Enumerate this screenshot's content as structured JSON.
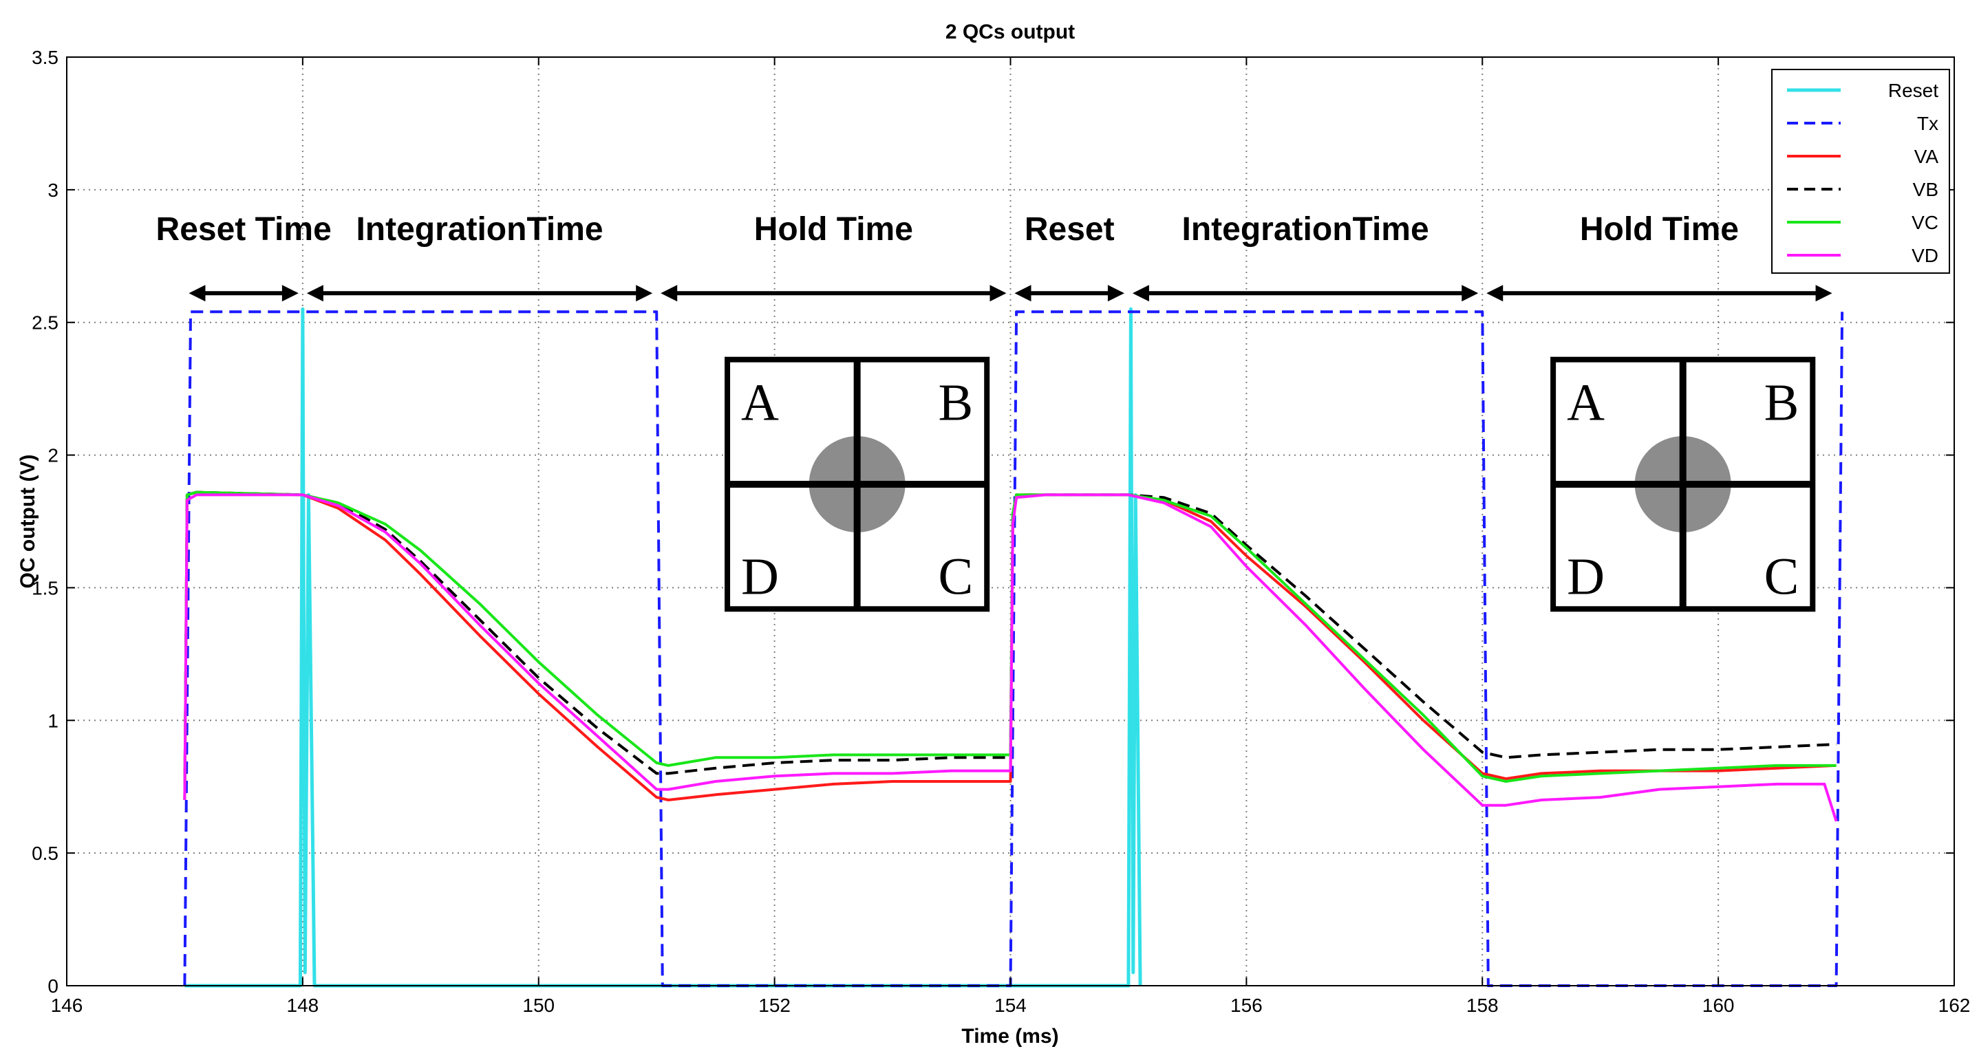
{
  "chart_data": {
    "type": "line",
    "title": "2 QCs output",
    "xlabel": "Time (ms)",
    "ylabel": "QC output (V)",
    "xlim": [
      146,
      162
    ],
    "ylim": [
      0,
      3.5
    ],
    "grid": true,
    "legend_position": "top-right",
    "xticks": [
      "146",
      "148",
      "150",
      "152",
      "154",
      "156",
      "158",
      "160",
      "162"
    ],
    "yticks": [
      "0",
      "0.5",
      "1",
      "1.5",
      "2",
      "2.5",
      "3",
      "3.5"
    ],
    "series": [
      {
        "name": "Reset",
        "color": "#33e0e8",
        "style": "solid",
        "x": [
          147.0,
          147.98,
          148.0,
          148.02,
          148.05,
          148.1,
          155.0,
          155.02,
          155.04,
          155.06,
          155.1
        ],
        "y": [
          0,
          0,
          2.55,
          0.05,
          1.85,
          0,
          0,
          2.55,
          0.05,
          1.85,
          0
        ]
      },
      {
        "name": "Tx",
        "color": "#1a1aff",
        "style": "dashed",
        "x": [
          147.0,
          147.05,
          151.0,
          151.05,
          154.0,
          154.05,
          158.0,
          158.05,
          161.0,
          161.05
        ],
        "y": [
          0,
          2.54,
          2.54,
          0,
          0,
          2.54,
          2.54,
          0,
          0,
          2.54
        ]
      },
      {
        "name": "VA",
        "color": "#ff1a1a",
        "style": "solid",
        "x": [
          147.0,
          147.02,
          147.1,
          148.0,
          148.3,
          148.7,
          149.0,
          149.5,
          150.0,
          150.5,
          151.0,
          151.1,
          151.5,
          152.0,
          152.5,
          153.0,
          153.5,
          154.0,
          154.02,
          154.05,
          154.3,
          155.0,
          155.3,
          155.7,
          156.0,
          156.5,
          157.0,
          157.5,
          158.0,
          158.2,
          158.5,
          159.0,
          159.5,
          160.0,
          160.5,
          161.0
        ],
        "y": [
          0.7,
          1.85,
          1.86,
          1.85,
          1.8,
          1.68,
          1.55,
          1.32,
          1.1,
          0.9,
          0.71,
          0.7,
          0.72,
          0.74,
          0.76,
          0.77,
          0.77,
          0.77,
          1.75,
          1.85,
          1.85,
          1.85,
          1.83,
          1.75,
          1.62,
          1.43,
          1.22,
          1.0,
          0.8,
          0.78,
          0.8,
          0.81,
          0.81,
          0.81,
          0.82,
          0.83
        ]
      },
      {
        "name": "VB",
        "color": "#000000",
        "style": "dashed",
        "x": [
          147.0,
          147.02,
          147.1,
          148.0,
          148.3,
          148.7,
          149.0,
          149.5,
          150.0,
          150.5,
          151.0,
          151.1,
          151.5,
          152.0,
          152.5,
          153.0,
          153.5,
          154.0,
          154.02,
          154.05,
          154.3,
          155.0,
          155.3,
          155.7,
          156.0,
          156.5,
          157.0,
          157.5,
          158.0,
          158.2,
          158.5,
          159.0,
          159.5,
          160.0,
          160.5,
          161.0
        ],
        "y": [
          0.7,
          1.85,
          1.86,
          1.85,
          1.82,
          1.72,
          1.6,
          1.38,
          1.16,
          0.97,
          0.8,
          0.8,
          0.82,
          0.84,
          0.85,
          0.85,
          0.86,
          0.86,
          1.78,
          1.85,
          1.85,
          1.85,
          1.84,
          1.78,
          1.66,
          1.47,
          1.27,
          1.07,
          0.88,
          0.86,
          0.87,
          0.88,
          0.89,
          0.89,
          0.9,
          0.91
        ]
      },
      {
        "name": "VC",
        "color": "#19e619",
        "style": "solid",
        "x": [
          147.0,
          147.02,
          147.1,
          148.0,
          148.3,
          148.7,
          149.0,
          149.5,
          150.0,
          150.5,
          151.0,
          151.1,
          151.5,
          152.0,
          152.5,
          153.0,
          153.5,
          154.0,
          154.02,
          154.05,
          154.3,
          155.0,
          155.3,
          155.7,
          156.0,
          156.5,
          157.0,
          157.5,
          158.0,
          158.2,
          158.5,
          159.0,
          159.5,
          160.0,
          160.5,
          161.0
        ],
        "y": [
          0.7,
          1.85,
          1.86,
          1.85,
          1.82,
          1.74,
          1.64,
          1.44,
          1.22,
          1.02,
          0.84,
          0.83,
          0.86,
          0.86,
          0.87,
          0.87,
          0.87,
          0.87,
          1.78,
          1.85,
          1.85,
          1.85,
          1.83,
          1.77,
          1.65,
          1.44,
          1.23,
          1.02,
          0.79,
          0.77,
          0.79,
          0.8,
          0.81,
          0.82,
          0.83,
          0.83
        ]
      },
      {
        "name": "VD",
        "color": "#ff1aff",
        "style": "solid",
        "x": [
          147.0,
          147.02,
          147.1,
          148.0,
          148.3,
          148.7,
          149.0,
          149.5,
          150.0,
          150.5,
          151.0,
          151.1,
          151.5,
          152.0,
          152.5,
          153.0,
          153.5,
          154.0,
          154.02,
          154.05,
          154.3,
          155.0,
          155.3,
          155.7,
          156.0,
          156.5,
          157.0,
          157.5,
          158.0,
          158.2,
          158.5,
          159.0,
          159.5,
          160.0,
          160.5,
          160.9,
          161.0
        ],
        "y": [
          0.7,
          1.83,
          1.85,
          1.85,
          1.81,
          1.71,
          1.59,
          1.36,
          1.14,
          0.94,
          0.74,
          0.74,
          0.77,
          0.79,
          0.8,
          0.8,
          0.81,
          0.81,
          1.74,
          1.84,
          1.85,
          1.85,
          1.82,
          1.73,
          1.58,
          1.36,
          1.12,
          0.89,
          0.68,
          0.68,
          0.7,
          0.71,
          0.74,
          0.75,
          0.76,
          0.76,
          0.62
        ]
      }
    ],
    "annotations": {
      "phases": [
        {
          "label": "Reset Time",
          "x_start": 147.0,
          "x_end": 148.0
        },
        {
          "label": "IntegrationTime",
          "x_start": 148.0,
          "x_end": 151.0
        },
        {
          "label": "Hold Time",
          "x_start": 151.0,
          "x_end": 154.0
        },
        {
          "label": "Reset",
          "x_start": 154.0,
          "x_end": 155.0
        },
        {
          "label": "IntegrationTime",
          "x_start": 155.0,
          "x_end": 158.0
        },
        {
          "label": "Hold Time",
          "x_start": 158.0,
          "x_end": 161.0
        }
      ],
      "quadrant_letters": [
        "A",
        "B",
        "D",
        "C"
      ],
      "quadrant_diagrams": [
        {
          "spot_quadrant": "center"
        },
        {
          "spot_quadrant": "center"
        }
      ]
    }
  }
}
